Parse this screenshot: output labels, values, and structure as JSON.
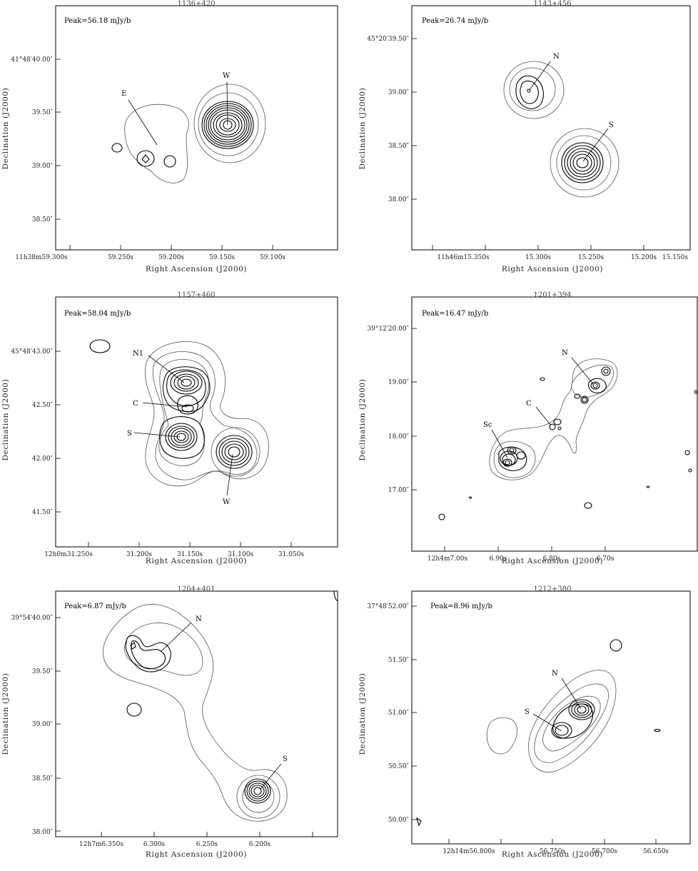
{
  "axis_titles": {
    "x": "Right Ascension (J2000)",
    "y": "Declination (J2000)"
  },
  "panels": [
    {
      "title": "1136+420",
      "peak": "Peak=56.18 mJy/b",
      "x_ticks": [
        "11h38m59.300s",
        "59.250s",
        "59.200s",
        "59.150s",
        "59.100s"
      ],
      "y_ticks": [
        "41°48′40.00″",
        "39.50″",
        "39.00″",
        "38.50″"
      ],
      "components": [
        "E",
        "W"
      ]
    },
    {
      "title": "1143+456",
      "peak": "Peak=26.74 mJy/b",
      "x_ticks": [
        "11h46m15.350s",
        "15.300s",
        "15.250s",
        "15.200s",
        "15.150s"
      ],
      "y_ticks": [
        "45°20′39.50″",
        "39.00″",
        "38.50″",
        "38.00″"
      ],
      "components": [
        "N",
        "S"
      ]
    },
    {
      "title": "1157+460",
      "peak": "Peak=58.04 mJy/b",
      "x_ticks": [
        "12h0m31.250s",
        "31.200s",
        "31.150s",
        "31.100s",
        "31.050s"
      ],
      "y_ticks": [
        "45°48′43.00″",
        "42.50″",
        "42.00″",
        "41.50″"
      ],
      "components": [
        "N1",
        "C",
        "S",
        "W"
      ]
    },
    {
      "title": "1201+394",
      "peak": "Peak=16.47 mJy/b",
      "x_ticks": [
        "12h4m7.00s",
        "6.90s",
        "6.80s",
        "6.70s"
      ],
      "y_ticks": [
        "39°12′20.00″",
        "19.00″",
        "18.00″",
        "17.00″"
      ],
      "components": [
        "N",
        "C",
        "Sc"
      ]
    },
    {
      "title": "1204+401",
      "peak": "Peak=6.87 mJy/b",
      "x_ticks": [
        "12h7m6.350s",
        "6.300s",
        "6.250s",
        "6.200s"
      ],
      "y_ticks": [
        "39°54′40.00″",
        "39.50″",
        "39.00″",
        "38.50″",
        "38.00″"
      ],
      "components": [
        "N",
        "S"
      ]
    },
    {
      "title": "1212+380",
      "peak": "Peak=8.96 mJy/b",
      "x_ticks": [
        "12h14m56.800s",
        "56.750s",
        "56.700s",
        "56.650s"
      ],
      "y_ticks": [
        "37°48′52.00″",
        "51.50″",
        "51.00″",
        "50.50″",
        "50.00″"
      ],
      "components": [
        "N",
        "S"
      ]
    }
  ]
}
